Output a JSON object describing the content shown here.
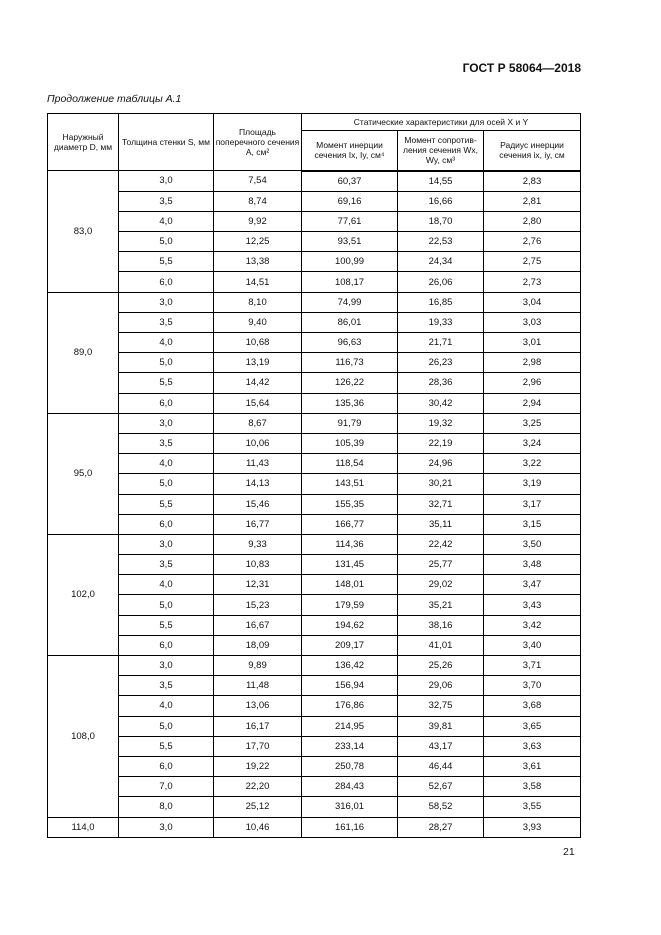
{
  "header": {
    "standard": "ГОСТ Р 58064—2018"
  },
  "caption": "Продолжение таблицы А.1",
  "columns": {
    "d": "Наружный диаметр D, мм",
    "s": "Толщина стенки S, мм",
    "a": "Площадь поперечного сечения А, см²",
    "group": "Статические характеристики  для осей X и Y",
    "i": "Момент инерции сечения Ix, Iy, см⁴",
    "w": "Момент сопротив-ления сечения Wx, Wy, см³",
    "r": "Радиус инерции сечения ix, iy, см"
  },
  "groups": [
    {
      "d": "83,0",
      "rows": [
        [
          "3,0",
          "7,54",
          "60,37",
          "14,55",
          "2,83"
        ],
        [
          "3,5",
          "8,74",
          "69,16",
          "16,66",
          "2,81"
        ],
        [
          "4,0",
          "9,92",
          "77,61",
          "18,70",
          "2,80"
        ],
        [
          "5,0",
          "12,25",
          "93,51",
          "22,53",
          "2,76"
        ],
        [
          "5,5",
          "13,38",
          "100,99",
          "24,34",
          "2,75"
        ],
        [
          "6,0",
          "14,51",
          "108,17",
          "26,06",
          "2,73"
        ]
      ]
    },
    {
      "d": "89,0",
      "rows": [
        [
          "3,0",
          "8,10",
          "74,99",
          "16,85",
          "3,04"
        ],
        [
          "3,5",
          "9,40",
          "86,01",
          "19,33",
          "3,03"
        ],
        [
          "4,0",
          "10,68",
          "96,63",
          "21,71",
          "3,01"
        ],
        [
          "5,0",
          "13,19",
          "116,73",
          "26,23",
          "2,98"
        ],
        [
          "5,5",
          "14,42",
          "126,22",
          "28,36",
          "2,96"
        ],
        [
          "6,0",
          "15,64",
          "135,36",
          "30,42",
          "2,94"
        ]
      ]
    },
    {
      "d": "95,0",
      "rows": [
        [
          "3,0",
          "8,67",
          "91,79",
          "19,32",
          "3,25"
        ],
        [
          "3,5",
          "10,06",
          "105,39",
          "22,19",
          "3,24"
        ],
        [
          "4,0",
          "11,43",
          "118,54",
          "24,96",
          "3,22"
        ],
        [
          "5,0",
          "14,13",
          "143,51",
          "30,21",
          "3,19"
        ],
        [
          "5,5",
          "15,46",
          "155,35",
          "32,71",
          "3,17"
        ],
        [
          "6,0",
          "16,77",
          "166,77",
          "35,11",
          "3,15"
        ]
      ]
    },
    {
      "d": "102,0",
      "rows": [
        [
          "3,0",
          "9,33",
          "114,36",
          "22,42",
          "3,50"
        ],
        [
          "3,5",
          "10,83",
          "131,45",
          "25,77",
          "3,48"
        ],
        [
          "4,0",
          "12,31",
          "148,01",
          "29,02",
          "3,47"
        ],
        [
          "5,0",
          "15,23",
          "179,59",
          "35,21",
          "3,43"
        ],
        [
          "5,5",
          "16,67",
          "194,62",
          "38,16",
          "3,42"
        ],
        [
          "6,0",
          "18,09",
          "209,17",
          "41,01",
          "3,40"
        ]
      ]
    },
    {
      "d": "108,0",
      "rows": [
        [
          "3,0",
          "9,89",
          "136,42",
          "25,26",
          "3,71"
        ],
        [
          "3,5",
          "11,48",
          "156,94",
          "29,06",
          "3,70"
        ],
        [
          "4,0",
          "13,06",
          "176,86",
          "32,75",
          "3,68"
        ],
        [
          "5,0",
          "16,17",
          "214,95",
          "39,81",
          "3,65"
        ],
        [
          "5,5",
          "17,70",
          "233,14",
          "43,17",
          "3,63"
        ],
        [
          "6,0",
          "19,22",
          "250,78",
          "46,44",
          "3,61"
        ],
        [
          "7,0",
          "22,20",
          "284,43",
          "52,67",
          "3,58"
        ],
        [
          "8,0",
          "25,12",
          "316,01",
          "58,52",
          "3,55"
        ]
      ]
    },
    {
      "d": "114,0",
      "rows": [
        [
          "3,0",
          "10,46",
          "161,16",
          "28,27",
          "3,93"
        ]
      ]
    }
  ],
  "page_number": "21"
}
